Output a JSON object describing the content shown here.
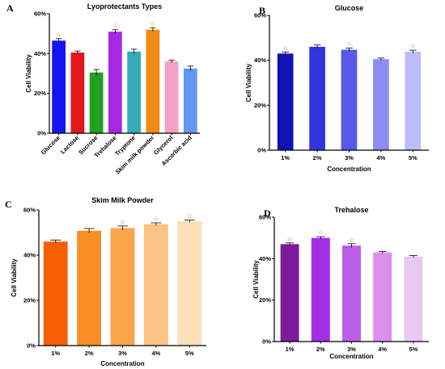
{
  "chart_data": [
    {
      "panel": "A",
      "type": "bar",
      "title": "Lyoprotectants Types",
      "xlabel": "",
      "ylabel": "Cell Viability",
      "ylim": [
        0,
        60
      ],
      "yticks": [
        "0%",
        "20%",
        "40%",
        "60%"
      ],
      "categories": [
        "Glucose",
        "Lactose",
        "Sucrose",
        "Trehalose",
        "Tryptone",
        "Skim milk powder",
        "Glycerol",
        "Ascorbic acid"
      ],
      "values": [
        46.5,
        40.5,
        30.5,
        51.0,
        41.0,
        52.0,
        36.0,
        32.5
      ],
      "errors": [
        1.0,
        0.8,
        1.5,
        1.0,
        1.2,
        1.0,
        0.7,
        1.2
      ],
      "significant": [
        true,
        false,
        false,
        true,
        false,
        true,
        false,
        false
      ],
      "colors": [
        "#1414f0",
        "#e3161a",
        "#22a022",
        "#a728e3",
        "#37aab8",
        "#f28a14",
        "#f4a0c8",
        "#6496f0"
      ],
      "grid": false,
      "legend": "none"
    },
    {
      "panel": "B",
      "type": "bar",
      "title": "Glucose",
      "xlabel": "Concentration",
      "ylabel": "Cell Viability",
      "ylim": [
        0,
        60
      ],
      "yticks": [
        "0%",
        "20%",
        "40%",
        "60%"
      ],
      "categories": [
        "1%",
        "2%",
        "3%",
        "4%",
        "5%"
      ],
      "values": [
        43.0,
        46.0,
        44.7,
        40.5,
        43.8
      ],
      "errors": [
        0.7,
        0.8,
        0.7,
        0.5,
        0.7
      ],
      "significant": [
        true,
        false,
        true,
        false,
        true
      ],
      "colors": [
        "#1212b4",
        "#3434de",
        "#5858ea",
        "#8c8cf2",
        "#bdbdfa"
      ],
      "grid": false,
      "legend": "none"
    },
    {
      "panel": "C",
      "type": "bar",
      "title": "Skim Milk Powder",
      "xlabel": "Concentration",
      "ylabel": "Cell Viability",
      "ylim": [
        0,
        60
      ],
      "yticks": [
        "0%",
        "20%",
        "40%",
        "60%"
      ],
      "categories": [
        "1%",
        "2%",
        "3%",
        "4%",
        "5%"
      ],
      "values": [
        46.0,
        50.8,
        52.0,
        53.7,
        55.0
      ],
      "errors": [
        0.7,
        1.0,
        0.9,
        0.6,
        0.5
      ],
      "significant": [
        false,
        false,
        true,
        true,
        true
      ],
      "colors": [
        "#f55e05",
        "#f78e26",
        "#f9a64a",
        "#fbc283",
        "#fde0b8"
      ],
      "grid": false,
      "legend": "none"
    },
    {
      "panel": "D",
      "type": "bar",
      "title": "Trehalose",
      "xlabel": "Concentration",
      "ylabel": "Cell Viability",
      "ylim": [
        0,
        60
      ],
      "yticks": [
        "0%",
        "20%",
        "40%",
        "60%"
      ],
      "categories": [
        "1%",
        "2%",
        "3%",
        "4%",
        "5%"
      ],
      "values": [
        47.0,
        50.0,
        46.3,
        43.0,
        41.0
      ],
      "errors": [
        0.6,
        0.6,
        0.9,
        0.5,
        0.5
      ],
      "significant": [
        true,
        true,
        true,
        false,
        false
      ],
      "colors": [
        "#7d1a9e",
        "#a42ee6",
        "#ba5ee6",
        "#dc90ee",
        "#e9c8f4"
      ],
      "grid": false,
      "legend": "none"
    }
  ],
  "marker_symbol": "☆",
  "axis_color": "#000000",
  "errorbar_color": "#000000",
  "star_color": "#d2691e"
}
